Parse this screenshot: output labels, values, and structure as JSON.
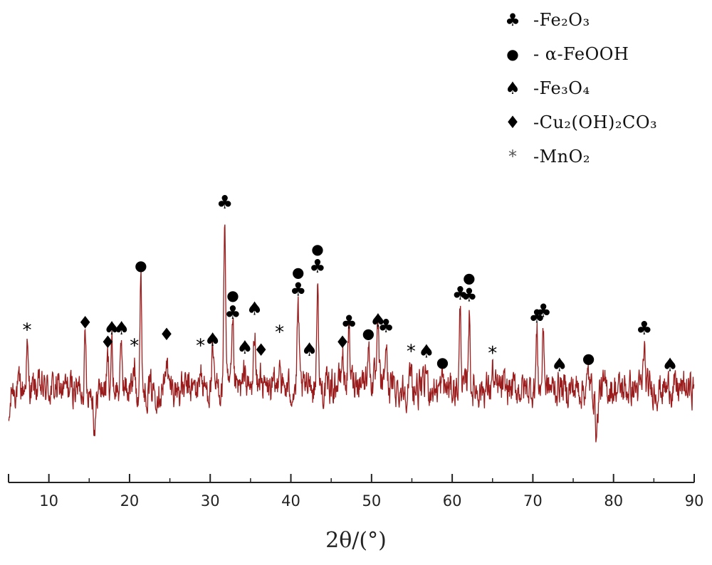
{
  "chart_data": {
    "type": "line",
    "xlabel": "2θ/(°)",
    "ylabel": "",
    "xlim": [
      5,
      90
    ],
    "ylim": [
      0,
      100
    ],
    "x_ticks": [
      10,
      20,
      30,
      40,
      50,
      60,
      70,
      80,
      90
    ],
    "grid": false,
    "line_color": "#9b1c1c",
    "legend_position": "top-right",
    "legend": [
      {
        "symbol": "♣",
        "label": "-Fe₂O₃"
      },
      {
        "symbol": "●",
        "label": "- α-FeOOH"
      },
      {
        "symbol": "♠",
        "label": "-Fe₃O₄"
      },
      {
        "symbol": "♦",
        "label": "-Cu₂(OH)₂CO₃"
      },
      {
        "symbol": "*",
        "label": "-MnO₂"
      }
    ],
    "peaks": [
      {
        "x": 7.3,
        "y": 21,
        "phases": [
          "*"
        ]
      },
      {
        "x": 14.5,
        "y": 25,
        "phases": [
          "♦"
        ]
      },
      {
        "x": 17.3,
        "y": 15,
        "phases": [
          "♦"
        ]
      },
      {
        "x": 17.8,
        "y": 22,
        "phases": [
          "♠"
        ]
      },
      {
        "x": 19.0,
        "y": 22,
        "phases": [
          "♠"
        ]
      },
      {
        "x": 20.6,
        "y": 13,
        "phases": [
          "*"
        ]
      },
      {
        "x": 21.4,
        "y": 55,
        "phases": [
          "●"
        ]
      },
      {
        "x": 24.6,
        "y": 19,
        "phases": [
          "♦"
        ]
      },
      {
        "x": 28.8,
        "y": 13,
        "phases": [
          "*"
        ]
      },
      {
        "x": 30.3,
        "y": 16,
        "phases": [
          "♠"
        ]
      },
      {
        "x": 31.8,
        "y": 87,
        "phases": [
          "♣"
        ]
      },
      {
        "x": 32.8,
        "y": 30,
        "phases": [
          "♣",
          "●"
        ]
      },
      {
        "x": 34.3,
        "y": 12,
        "phases": [
          "♠"
        ]
      },
      {
        "x": 35.5,
        "y": 32,
        "phases": [
          "♠"
        ]
      },
      {
        "x": 36.3,
        "y": 11,
        "phases": [
          "♦"
        ]
      },
      {
        "x": 38.6,
        "y": 20,
        "phases": [
          "*"
        ]
      },
      {
        "x": 40.9,
        "y": 42,
        "phases": [
          "♣",
          "●"
        ]
      },
      {
        "x": 42.3,
        "y": 11,
        "phases": [
          "♠"
        ]
      },
      {
        "x": 43.3,
        "y": 54,
        "phases": [
          "♣",
          "●"
        ]
      },
      {
        "x": 46.4,
        "y": 15,
        "phases": [
          "♦"
        ]
      },
      {
        "x": 47.2,
        "y": 25,
        "phases": [
          "♣"
        ]
      },
      {
        "x": 49.6,
        "y": 20,
        "phases": [
          "●"
        ]
      },
      {
        "x": 50.8,
        "y": 26,
        "phases": [
          "♠"
        ]
      },
      {
        "x": 51.8,
        "y": 23,
        "phases": [
          "♣"
        ]
      },
      {
        "x": 54.9,
        "y": 10,
        "phases": [
          "*"
        ]
      },
      {
        "x": 56.8,
        "y": 10,
        "phases": [
          "♠"
        ]
      },
      {
        "x": 58.8,
        "y": 5,
        "phases": [
          "●"
        ]
      },
      {
        "x": 61.0,
        "y": 40,
        "phases": [
          "♣"
        ]
      },
      {
        "x": 62.1,
        "y": 39,
        "phases": [
          "♣",
          "●"
        ]
      },
      {
        "x": 65.0,
        "y": 9,
        "phases": [
          "*"
        ]
      },
      {
        "x": 70.5,
        "y": 28,
        "phases": [
          "♣"
        ]
      },
      {
        "x": 71.3,
        "y": 31,
        "phases": [
          "♣"
        ]
      },
      {
        "x": 73.3,
        "y": 3,
        "phases": [
          "♠"
        ]
      },
      {
        "x": 76.9,
        "y": 7,
        "phases": [
          "●"
        ]
      },
      {
        "x": 83.8,
        "y": 22,
        "phases": [
          "♣"
        ]
      },
      {
        "x": 87.0,
        "y": 3,
        "phases": [
          "♠"
        ]
      }
    ],
    "dips": [
      {
        "x": 15.7,
        "y": -20
      },
      {
        "x": 77.9,
        "y": -22
      }
    ]
  }
}
